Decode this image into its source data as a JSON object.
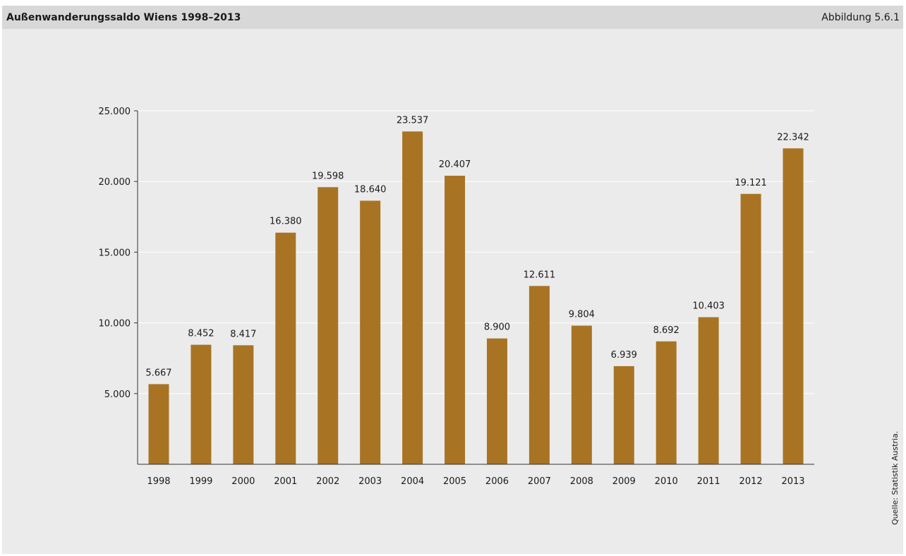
{
  "header": {
    "title": "Außenwanderungssaldo Wiens 1998–2013",
    "figure_number": "Abbildung 5.6.1"
  },
  "source": "Quelle: Statistik Austria.",
  "colors": {
    "bar": "#a87424",
    "panel_background": "#ebebeb",
    "header_background": "#d8d8d8",
    "gridline": "#ffffff",
    "axis": "#333333"
  },
  "chart_data": {
    "type": "bar",
    "title": "Außenwanderungssaldo Wiens 1998–2013",
    "xlabel": "",
    "ylabel": "",
    "ylim": [
      0,
      25000
    ],
    "grid": true,
    "y_ticks": [
      5000,
      10000,
      15000,
      20000,
      25000
    ],
    "y_tick_labels": [
      "5.000",
      "10.000",
      "15.000",
      "20.000",
      "25.000"
    ],
    "categories": [
      "1998",
      "1999",
      "2000",
      "2001",
      "2002",
      "2003",
      "2004",
      "2005",
      "2006",
      "2007",
      "2008",
      "2009",
      "2010",
      "2011",
      "2012",
      "2013"
    ],
    "values": [
      5667,
      8452,
      8417,
      16380,
      19598,
      18640,
      23537,
      20407,
      8900,
      12611,
      9804,
      6939,
      8692,
      10403,
      19121,
      22342
    ],
    "value_labels": [
      "5.667",
      "8.452",
      "8.417",
      "16.380",
      "19.598",
      "18.640",
      "23.537",
      "20.407",
      "8.900",
      "12.611",
      "9.804",
      "6.939",
      "8.692",
      "10.403",
      "19.121",
      "22.342"
    ]
  }
}
